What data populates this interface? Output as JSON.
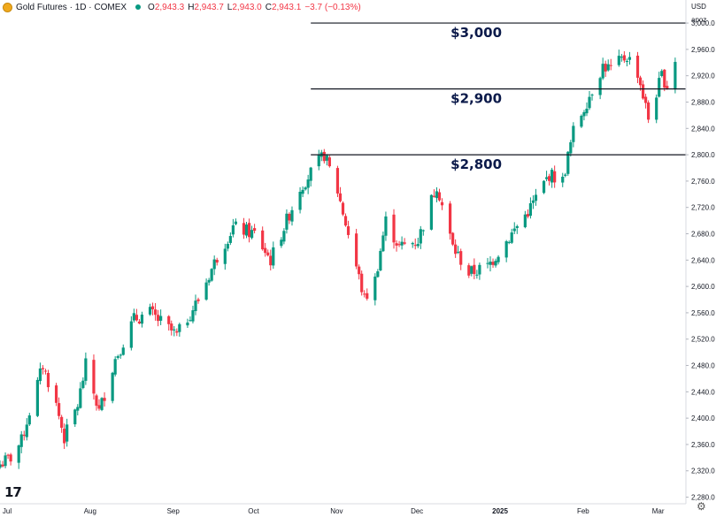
{
  "header": {
    "title": "Gold Futures · 1D · COMEX",
    "open_key": "O",
    "open": "2,943.3",
    "high_key": "H",
    "high": "2,943.7",
    "low_key": "L",
    "low": "2,943.0",
    "close_key": "C",
    "close": "2,943.1",
    "change": "−3.7 (−0.13%)"
  },
  "axis": {
    "currency": "USD",
    "ext_label": "apoz"
  },
  "icons": {
    "logo": "tradingview-logo-icon",
    "settings": "gear-icon",
    "symbol": "gold-coin-icon",
    "status": "market-status-dot-icon"
  },
  "colors": {
    "up": "#089981",
    "down": "#f23645",
    "level_line": "#131722",
    "level_text": "#0b1a4a"
  },
  "chart_data": {
    "type": "candlestick",
    "title": "Gold Futures · 1D · COMEX",
    "ylabel": "USD",
    "ylim": [
      2270,
      3035
    ],
    "xlim": [
      "2024-07-01",
      "2025-03-14"
    ],
    "y_ticks": [
      2280,
      2320,
      2360,
      2400,
      2440,
      2480,
      2520,
      2560,
      2600,
      2640,
      2680,
      2720,
      2760,
      2800,
      2840,
      2880,
      2920,
      2960,
      3000
    ],
    "x_ticks": [
      {
        "label": "Jul",
        "date": "2024-07-01"
      },
      {
        "label": "Aug",
        "date": "2024-08-01"
      },
      {
        "label": "Sep",
        "date": "2024-09-01"
      },
      {
        "label": "Oct",
        "date": "2024-10-01"
      },
      {
        "label": "Nov",
        "date": "2024-11-01"
      },
      {
        "label": "Dec",
        "date": "2024-12-01"
      },
      {
        "label": "2025",
        "date": "2025-01-01"
      },
      {
        "label": "Feb",
        "date": "2025-02-01"
      },
      {
        "label": "Mar",
        "date": "2025-03-01"
      }
    ],
    "levels": [
      {
        "label": "$3,000",
        "value": 3000,
        "from": "2024-10-25"
      },
      {
        "label": "$2,900",
        "value": 2900,
        "from": "2024-10-25"
      },
      {
        "label": "$2,800",
        "value": 2800,
        "from": "2024-10-25"
      }
    ],
    "close_path": [
      {
        "date": "2024-07-01",
        "close": 2330
      },
      {
        "date": "2024-07-05",
        "close": 2340
      },
      {
        "date": "2024-07-09",
        "close": 2365
      },
      {
        "date": "2024-07-12",
        "close": 2410
      },
      {
        "date": "2024-07-17",
        "close": 2480
      },
      {
        "date": "2024-07-22",
        "close": 2420
      },
      {
        "date": "2024-07-25",
        "close": 2370
      },
      {
        "date": "2024-07-30",
        "close": 2420
      },
      {
        "date": "2024-08-02",
        "close": 2480
      },
      {
        "date": "2024-08-07",
        "close": 2410
      },
      {
        "date": "2024-08-13",
        "close": 2490
      },
      {
        "date": "2024-08-20",
        "close": 2550
      },
      {
        "date": "2024-08-26",
        "close": 2560
      },
      {
        "date": "2024-09-05",
        "close": 2525
      },
      {
        "date": "2024-09-13",
        "close": 2580
      },
      {
        "date": "2024-09-20",
        "close": 2645
      },
      {
        "date": "2024-09-26",
        "close": 2690
      },
      {
        "date": "2024-10-04",
        "close": 2680
      },
      {
        "date": "2024-10-10",
        "close": 2640
      },
      {
        "date": "2024-10-16",
        "close": 2700
      },
      {
        "date": "2024-10-21",
        "close": 2750
      },
      {
        "date": "2024-10-30",
        "close": 2800
      },
      {
        "date": "2024-11-04",
        "close": 2745
      },
      {
        "date": "2024-11-08",
        "close": 2680
      },
      {
        "date": "2024-11-14",
        "close": 2580
      },
      {
        "date": "2024-11-18",
        "close": 2610
      },
      {
        "date": "2024-11-22",
        "close": 2700
      },
      {
        "date": "2024-11-27",
        "close": 2660
      },
      {
        "date": "2024-12-04",
        "close": 2670
      },
      {
        "date": "2024-12-11",
        "close": 2755
      },
      {
        "date": "2024-12-17",
        "close": 2660
      },
      {
        "date": "2024-12-23",
        "close": 2620
      },
      {
        "date": "2024-12-30",
        "close": 2630
      },
      {
        "date": "2025-01-08",
        "close": 2680
      },
      {
        "date": "2025-01-15",
        "close": 2720
      },
      {
        "date": "2025-01-22",
        "close": 2770
      },
      {
        "date": "2025-01-27",
        "close": 2760
      },
      {
        "date": "2025-01-31",
        "close": 2835
      },
      {
        "date": "2025-02-06",
        "close": 2890
      },
      {
        "date": "2025-02-11",
        "close": 2935
      },
      {
        "date": "2025-02-14",
        "close": 2930
      },
      {
        "date": "2025-02-20",
        "close": 2950
      },
      {
        "date": "2025-02-24",
        "close": 2925
      },
      {
        "date": "2025-02-28",
        "close": 2855
      },
      {
        "date": "2025-03-05",
        "close": 2920
      },
      {
        "date": "2025-03-07",
        "close": 2905
      },
      {
        "date": "2025-03-10",
        "close": 2945
      }
    ]
  }
}
